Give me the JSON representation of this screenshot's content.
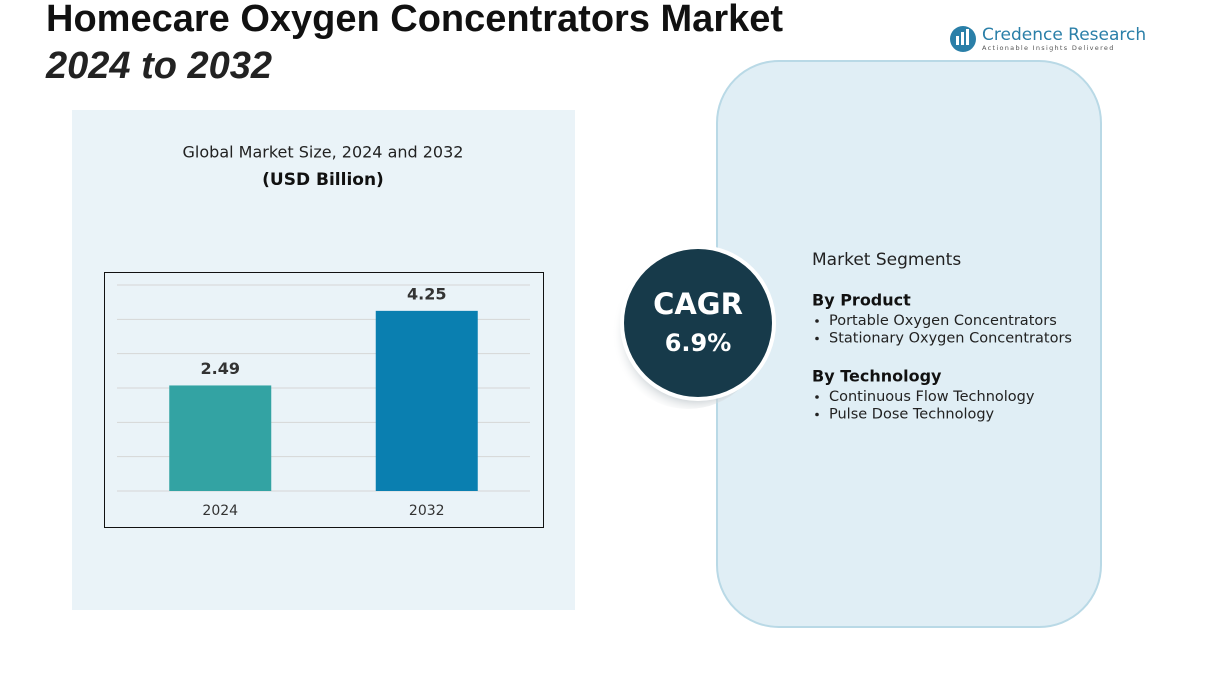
{
  "header": {
    "title": "Homecare Oxygen Concentrators Market",
    "subtitle": "2024 to 2032"
  },
  "logo": {
    "name": "Credence Research",
    "tagline": "Actionable Insights Delivered"
  },
  "chart_data": {
    "type": "bar",
    "title": "Global Market Size, 2024 and 2032",
    "subtitle": "(USD Billion)",
    "categories": [
      "2024",
      "2032"
    ],
    "values": [
      2.49,
      4.25
    ],
    "colors": [
      "#33a3a3",
      "#0a7fb0"
    ],
    "ylim": [
      0,
      4.86
    ],
    "yticks": [
      0,
      0.81,
      1.62,
      2.43,
      3.24,
      4.05,
      4.86
    ],
    "grid": true
  },
  "cagr": {
    "label": "CAGR",
    "value": "6.9%"
  },
  "segments": {
    "title": "Market Segments",
    "groups": [
      {
        "name": "By Product",
        "items": [
          "Portable Oxygen Concentrators",
          "Stationary Oxygen Concentrators"
        ]
      },
      {
        "name": "By Technology",
        "items": [
          "Continuous Flow Technology",
          "Pulse Dose Technology"
        ]
      }
    ]
  }
}
